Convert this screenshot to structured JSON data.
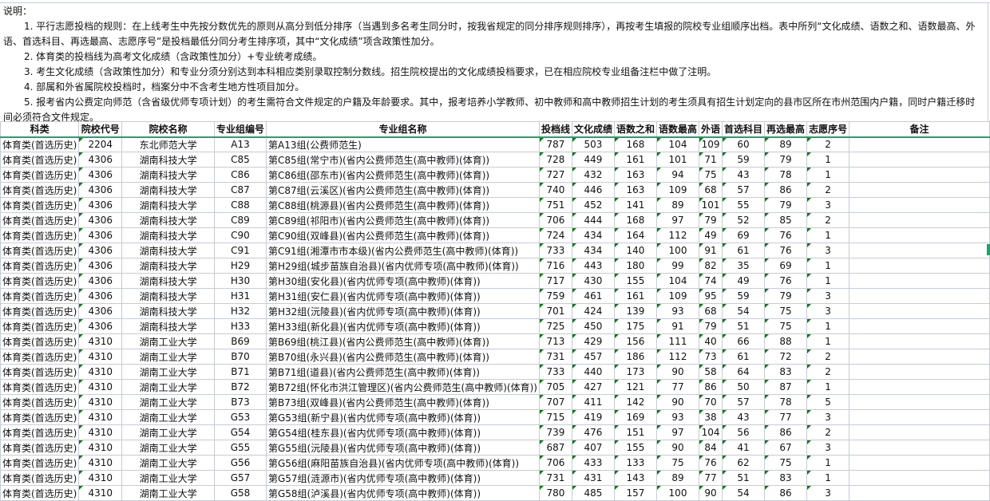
{
  "notes": {
    "title": "说明：",
    "items": [
      "1. 平行志愿投档的规则：在上线考生中先按分数优先的原则从高分到低分排序（当遇到多名考生同分时，按我省规定的同分排序规则排序），再按考生填报的院校专业组顺序出档。表中所列“文化成绩、语数之和、语数最高、外语、首选科目、再选最高、志愿序号”是投档最低分同分考生排序项，其中“文化成绩”项含政策性加分。",
      "2. 体育类的投档线为高考文化成绩（含政策性加分）+专业统考成绩。",
      "3. 考生文化成绩（含政策性加分）和专业分须分别达到本科相应类别录取控制分数线。招生院校提出的文化成绩投档要求，已在相应院校专业组备注栏中做了注明。",
      "4. 部属和外省属院校投档时，档案分中不含考生地方性项目加分。",
      "5. 报考省内公费定向师范（含省级优师专项计划）的考生需符合文件规定的户籍及年龄要求。其中，报考培养小学教师、初中教师和高中教师招生计划的考生须具有招生计划定向的县市区所在市州范围内户籍，同时户籍迁移时间必须符合文件规定。"
    ]
  },
  "table": {
    "headers": [
      "科类",
      "院校代号",
      "院校名称",
      "专业组编号",
      "专业组名称",
      "投档线",
      "文化成绩",
      "语数之和",
      "语数最高",
      "外语",
      "首选科目",
      "再选最高",
      "志愿序号",
      "备注"
    ],
    "rows": [
      [
        "体育类(首选历史)",
        "2204",
        "东北师范大学",
        "A13",
        "第A13组(公费师范生)",
        "787",
        "503",
        "168",
        "104",
        "109",
        "60",
        "89",
        "2",
        ""
      ],
      [
        "体育类(首选历史)",
        "4306",
        "湖南科技大学",
        "C85",
        "第C85组(常宁市)(省内公费师范生(高中教师)(体育))",
        "728",
        "449",
        "161",
        "101",
        "71",
        "59",
        "79",
        "1",
        ""
      ],
      [
        "体育类(首选历史)",
        "4306",
        "湖南科技大学",
        "C86",
        "第C86组(邵东市)(省内公费师范生(高中教师)(体育))",
        "727",
        "432",
        "163",
        "94",
        "75",
        "43",
        "78",
        "1",
        ""
      ],
      [
        "体育类(首选历史)",
        "4306",
        "湖南科技大学",
        "C87",
        "第C87组(云溪区)(省内公费师范生(高中教师)(体育))",
        "740",
        "446",
        "163",
        "109",
        "68",
        "57",
        "86",
        "2",
        ""
      ],
      [
        "体育类(首选历史)",
        "4306",
        "湖南科技大学",
        "C88",
        "第C88组(桃源县)(省内公费师范生(高中教师)(体育))",
        "751",
        "452",
        "141",
        "89",
        "101",
        "55",
        "79",
        "3",
        ""
      ],
      [
        "体育类(首选历史)",
        "4306",
        "湖南科技大学",
        "C89",
        "第C89组(祁阳市)(省内公费师范生(高中教师)(体育))",
        "706",
        "444",
        "168",
        "97",
        "79",
        "52",
        "85",
        "2",
        ""
      ],
      [
        "体育类(首选历史)",
        "4306",
        "湖南科技大学",
        "C90",
        "第C90组(双峰县)(省内公费师范生(高中教师)(体育))",
        "724",
        "434",
        "164",
        "112",
        "49",
        "69",
        "76",
        "1",
        ""
      ],
      [
        "体育类(首选历史)",
        "4306",
        "湖南科技大学",
        "C91",
        "第C91组(湘潭市市本级)(省内公费师范生(高中教师)(体育))",
        "733",
        "434",
        "140",
        "100",
        "91",
        "61",
        "76",
        "3",
        ""
      ],
      [
        "体育类(首选历史)",
        "4306",
        "湖南科技大学",
        "H29",
        "第H29组(城步苗族自治县)(省内优师专项(高中教师)(体育))",
        "716",
        "443",
        "180",
        "99",
        "82",
        "35",
        "69",
        "1",
        ""
      ],
      [
        "体育类(首选历史)",
        "4306",
        "湖南科技大学",
        "H30",
        "第H30组(安化县)(省内优师专项(高中教师)(体育))",
        "717",
        "430",
        "155",
        "104",
        "74",
        "49",
        "76",
        "1",
        ""
      ],
      [
        "体育类(首选历史)",
        "4306",
        "湖南科技大学",
        "H31",
        "第H31组(安仁县)(省内优师专项(高中教师)(体育))",
        "759",
        "461",
        "161",
        "109",
        "95",
        "59",
        "79",
        "3",
        ""
      ],
      [
        "体育类(首选历史)",
        "4306",
        "湖南科技大学",
        "H32",
        "第H32组(沅陵县)(省内优师专项(高中教师)(体育))",
        "701",
        "424",
        "139",
        "93",
        "68",
        "54",
        "75",
        "3",
        ""
      ],
      [
        "体育类(首选历史)",
        "4306",
        "湖南科技大学",
        "H33",
        "第H33组(新化县)(省内优师专项(高中教师)(体育))",
        "725",
        "450",
        "175",
        "91",
        "79",
        "51",
        "75",
        "1",
        ""
      ],
      [
        "体育类(首选历史)",
        "4310",
        "湖南工业大学",
        "B69",
        "第B69组(桃江县)(省内公费师范生(高中教师)(体育))",
        "713",
        "429",
        "156",
        "111",
        "40",
        "66",
        "88",
        "1",
        ""
      ],
      [
        "体育类(首选历史)",
        "4310",
        "湖南工业大学",
        "B70",
        "第B70组(永兴县)(省内公费师范生(高中教师)(体育))",
        "731",
        "457",
        "186",
        "112",
        "73",
        "61",
        "72",
        "2",
        ""
      ],
      [
        "体育类(首选历史)",
        "4310",
        "湖南工业大学",
        "B71",
        "第B71组(道县)(省内公费师范生(高中教师)(体育))",
        "733",
        "440",
        "173",
        "90",
        "58",
        "64",
        "83",
        "2",
        ""
      ],
      [
        "体育类(首选历史)",
        "4310",
        "湖南工业大学",
        "B72",
        "第B72组(怀化市洪江管理区)(省内公费师范生(高中教师)(体育))",
        "705",
        "427",
        "121",
        "77",
        "86",
        "50",
        "87",
        "1",
        ""
      ],
      [
        "体育类(首选历史)",
        "4310",
        "湖南工业大学",
        "B73",
        "第B73组(双峰县)(省内公费师范生(高中教师)(体育))",
        "707",
        "411",
        "142",
        "90",
        "70",
        "57",
        "78",
        "5",
        ""
      ],
      [
        "体育类(首选历史)",
        "4310",
        "湖南工业大学",
        "G53",
        "第G53组(新宁县)(省内优师专项(高中教师)(体育))",
        "715",
        "419",
        "169",
        "93",
        "38",
        "43",
        "77",
        "3",
        ""
      ],
      [
        "体育类(首选历史)",
        "4310",
        "湖南工业大学",
        "G54",
        "第G54组(桂东县)(省内优师专项(高中教师)(体育))",
        "739",
        "476",
        "151",
        "97",
        "104",
        "56",
        "86",
        "2",
        ""
      ],
      [
        "体育类(首选历史)",
        "4310",
        "湖南工业大学",
        "G55",
        "第G55组(沅陵县)(省内优师专项(高中教师)(体育))",
        "687",
        "407",
        "155",
        "90",
        "84",
        "41",
        "67",
        "3",
        ""
      ],
      [
        "体育类(首选历史)",
        "4310",
        "湖南工业大学",
        "G56",
        "第G56组(麻阳苗族自治县)(省内优师专项(高中教师)(体育))",
        "706",
        "433",
        "133",
        "75",
        "76",
        "62",
        "75",
        "1",
        ""
      ],
      [
        "体育类(首选历史)",
        "4310",
        "湖南工业大学",
        "G57",
        "第G57组(涟源市)(省内优师专项(高中教师)(体育))",
        "731",
        "431",
        "143",
        "89",
        "77",
        "51",
        "83",
        "1",
        ""
      ],
      [
        "体育类(首选历史)",
        "4310",
        "湖南工业大学",
        "G58",
        "第G58组(泸溪县)(省内优师专项(高中教师)(体育))",
        "780",
        "485",
        "157",
        "100",
        "90",
        "54",
        "86",
        "3",
        ""
      ]
    ]
  },
  "colors": {
    "grid": "#c8cbd8",
    "header_underline": "#1fa36b",
    "number_as_text_marker": "#0a7a10"
  }
}
